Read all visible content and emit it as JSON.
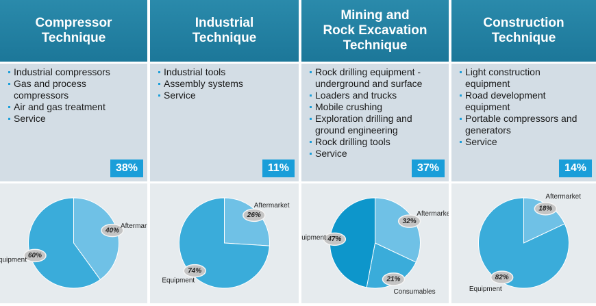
{
  "columns": [
    {
      "title": [
        "Compressor",
        "Technique"
      ],
      "items": [
        "Industrial compressors",
        "Gas and process compressors",
        "Air and gas treatment",
        "Service"
      ],
      "share": "38%"
    },
    {
      "title": [
        "Industrial",
        "Technique"
      ],
      "items": [
        "Industrial tools",
        "Assembly systems",
        "Service"
      ],
      "share": "11%"
    },
    {
      "title": [
        "Mining and",
        "Rock Excavation",
        "Technique"
      ],
      "items": [
        "Rock drilling equipment - underground and surface",
        "Loaders and trucks",
        "Mobile crushing",
        "Exploration drilling and ground engineering",
        "Rock drilling tools",
        "Service"
      ],
      "share": "37%"
    },
    {
      "title": [
        "Construction",
        "Technique"
      ],
      "items": [
        "Light construction equipment",
        "Road development equipment",
        "Portable compressors and generators",
        "Service"
      ],
      "share": "14%"
    }
  ],
  "chart_data": [
    {
      "type": "pie",
      "categories": [
        "Aftermarket",
        "Equipment"
      ],
      "values": [
        40,
        60
      ],
      "value_labels": [
        "40%",
        "60%"
      ],
      "colors": [
        "#6fc1e6",
        "#3aacda"
      ]
    },
    {
      "type": "pie",
      "categories": [
        "Aftermarket",
        "Equipment"
      ],
      "values": [
        26,
        74
      ],
      "value_labels": [
        "26%",
        "74%"
      ],
      "colors": [
        "#6fc1e6",
        "#3aacda"
      ]
    },
    {
      "type": "pie",
      "categories": [
        "Aftermarket",
        "Consumables",
        "Equipment"
      ],
      "values": [
        32,
        21,
        47
      ],
      "value_labels": [
        "32%",
        "21%",
        "47%"
      ],
      "colors": [
        "#6fc1e6",
        "#3aacda",
        "#0d96cb"
      ]
    },
    {
      "type": "pie",
      "categories": [
        "Aftermarket",
        "Equipment"
      ],
      "values": [
        18,
        82
      ],
      "value_labels": [
        "18%",
        "82%"
      ],
      "colors": [
        "#6fc1e6",
        "#3aacda"
      ]
    }
  ]
}
